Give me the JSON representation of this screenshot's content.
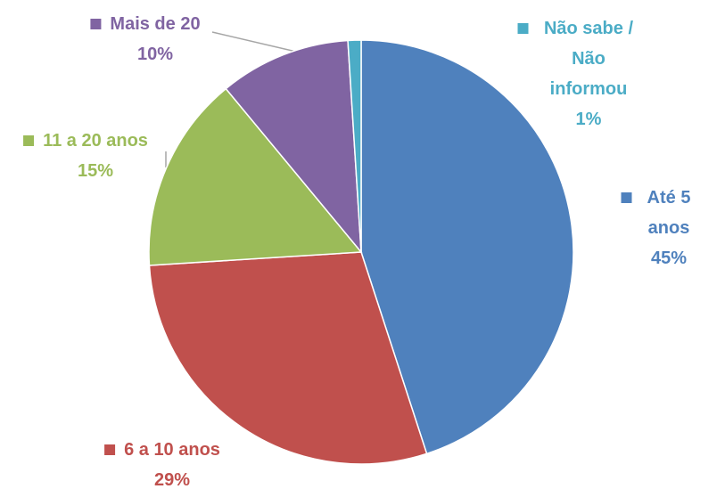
{
  "chart_data": {
    "type": "pie",
    "categories": [
      "Até 5 anos",
      "6 a 10 anos",
      "11 a 20 anos",
      "Mais de 20",
      "Não sabe / Não informou"
    ],
    "values": [
      45,
      29,
      15,
      10,
      1
    ],
    "value_labels": [
      "45%",
      "29%",
      "15%",
      "10%",
      "1%"
    ],
    "colors": [
      "#4f81bd",
      "#c0504d",
      "#9bbb59",
      "#8064a2",
      "#4bacc6"
    ]
  }
}
